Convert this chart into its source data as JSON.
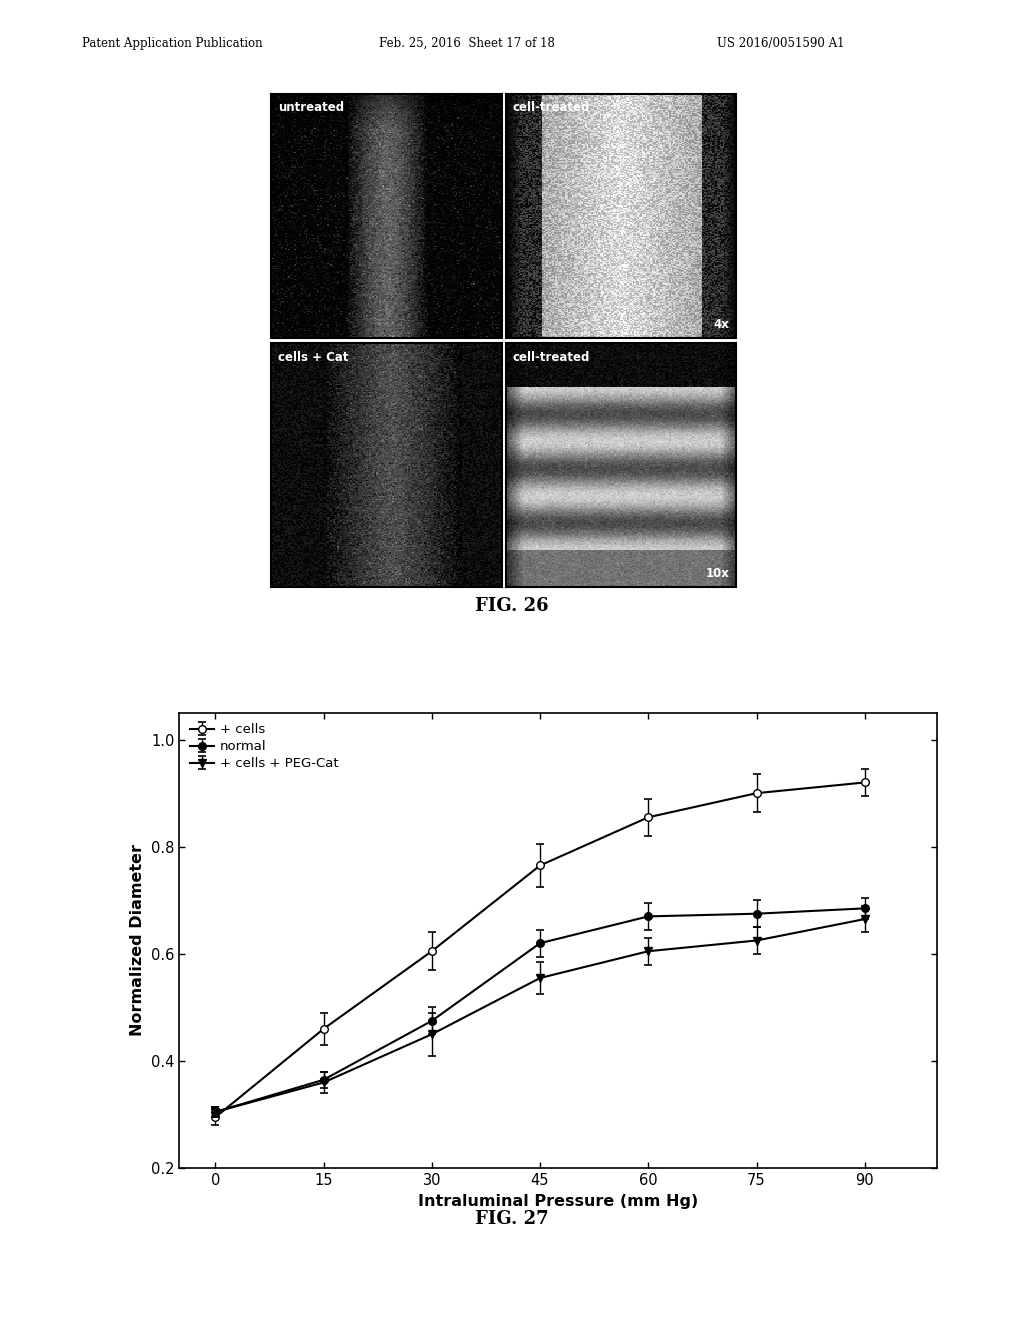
{
  "header_left": "Patent Application Publication",
  "header_center": "Feb. 25, 2016  Sheet 17 of 18",
  "header_right": "US 2016/0051590 A1",
  "fig26_label": "FIG. 26",
  "fig27_label": "FIG. 27",
  "image_labels": {
    "top_left": "untreated",
    "top_right": "cell-treated",
    "bottom_left": "cells + Cat",
    "bottom_right": "cell-treated"
  },
  "image_magnifications": {
    "top_right": "4x",
    "bottom_right": "10x"
  },
  "x_data": [
    0,
    15,
    30,
    45,
    60,
    75,
    90
  ],
  "normal_y": [
    0.305,
    0.365,
    0.475,
    0.62,
    0.67,
    0.675,
    0.685
  ],
  "normal_err": [
    0.01,
    0.015,
    0.025,
    0.025,
    0.025,
    0.025,
    0.02
  ],
  "cells_y": [
    0.295,
    0.46,
    0.605,
    0.765,
    0.855,
    0.9,
    0.92
  ],
  "cells_err": [
    0.015,
    0.03,
    0.035,
    0.04,
    0.035,
    0.035,
    0.025
  ],
  "pegcat_y": [
    0.305,
    0.36,
    0.45,
    0.555,
    0.605,
    0.625,
    0.665
  ],
  "pegcat_err": [
    0.01,
    0.02,
    0.04,
    0.03,
    0.025,
    0.025,
    0.025
  ],
  "xlabel": "Intraluminal Pressure (mm Hg)",
  "ylabel": "Normalized Diameter",
  "xlim": [
    -5,
    100
  ],
  "ylim": [
    0.2,
    1.05
  ],
  "yticks": [
    0.2,
    0.4,
    0.6,
    0.8,
    1.0
  ],
  "xticks": [
    0,
    15,
    30,
    45,
    60,
    75,
    90
  ],
  "legend_labels": [
    "normal",
    "+ cells",
    "+ cells + PEG-Cat"
  ],
  "background_color": "#ffffff",
  "line_color": "#000000"
}
